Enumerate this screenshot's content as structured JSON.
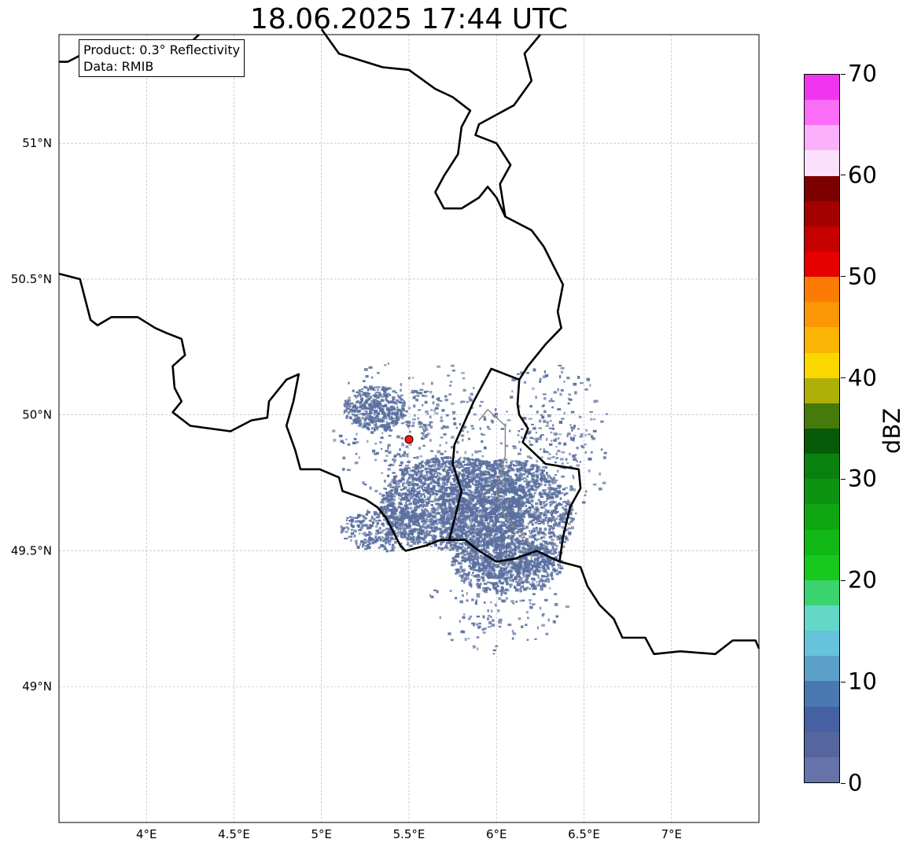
{
  "title": "18.06.2025 17:44 UTC",
  "info": {
    "product": "Product: 0.3° Reflectivity",
    "data": "Data: RMIB"
  },
  "map_data": {
    "lon_range": [
      3.5,
      7.5
    ],
    "lat_range": [
      48.5,
      51.4
    ],
    "lon_ticks": [
      "4°E",
      "4.5°E",
      "5°E",
      "5.5°E",
      "6°E",
      "6.5°E",
      "7°E"
    ],
    "lat_ticks": [
      "49°N",
      "49.5°N",
      "50°N",
      "50.5°N",
      "51°N"
    ],
    "gridlines": true,
    "radar_site": {
      "lon": 5.5,
      "lat": 49.91,
      "color": "#ff1a1a"
    },
    "border_color": "#000000",
    "echo_color": "#5a6f9e"
  },
  "colorbar": {
    "label": "dBZ",
    "range": [
      0,
      70
    ],
    "tick_labels": [
      "0",
      "10",
      "20",
      "30",
      "40",
      "50",
      "60",
      "70"
    ],
    "colors": [
      "#6673a8",
      "#55669f",
      "#4560a3",
      "#4a78b0",
      "#5ba0c8",
      "#67c2dc",
      "#64d8c8",
      "#3ad36e",
      "#16c91c",
      "#12b815",
      "#0fa612",
      "#0c9410",
      "#0a800e",
      "#075a07",
      "#467a0a",
      "#aeb006",
      "#fbd700",
      "#fbb505",
      "#fb9705",
      "#fb7b05",
      "#e60000",
      "#c70000",
      "#a30000",
      "#7d0000",
      "#fbe0fb",
      "#fbb0fb",
      "#fb6ef8",
      "#f035f0"
    ]
  }
}
